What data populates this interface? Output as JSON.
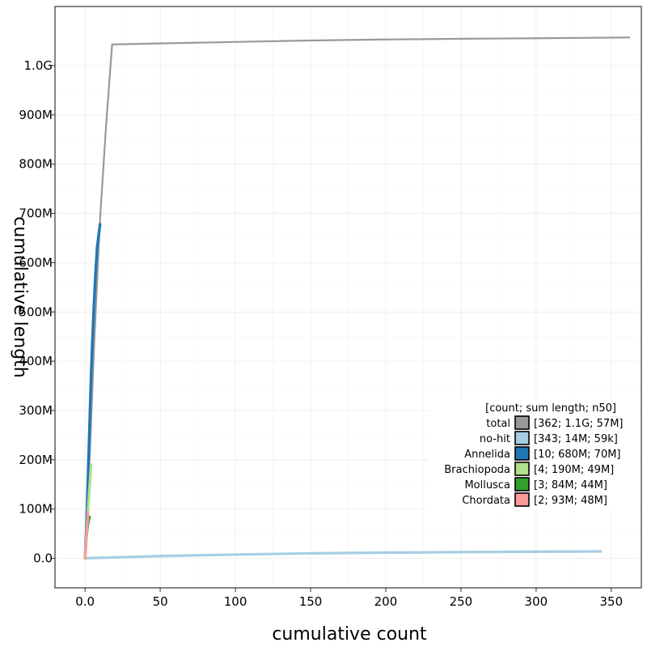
{
  "chart_data": {
    "type": "line",
    "xlabel": "cumulative count",
    "ylabel": "cumulative length",
    "xlim": [
      -20,
      370
    ],
    "ylim": [
      -60000000,
      1120000000
    ],
    "x_ticks": [
      0,
      50,
      100,
      150,
      200,
      250,
      300,
      350
    ],
    "x_tick_labels": [
      "0.0",
      "50",
      "100",
      "150",
      "200",
      "250",
      "300",
      "350"
    ],
    "y_ticks": [
      0,
      100000000,
      200000000,
      300000000,
      400000000,
      500000000,
      600000000,
      700000000,
      800000000,
      900000000,
      1000000000
    ],
    "y_tick_labels": [
      "0.0",
      "100M",
      "200M",
      "300M",
      "400M",
      "500M",
      "600M",
      "700M",
      "800M",
      "900M",
      "1.0G"
    ],
    "grid": true,
    "legend_position": "bottom-right",
    "legend_title": "[count; sum length; n50]",
    "series": [
      {
        "name": "total",
        "stats": "[362; 1.1G; 57M]",
        "color": "#999999",
        "values": [
          [
            0,
            0
          ],
          [
            2,
            120000000
          ],
          [
            6,
            430000000
          ],
          [
            10,
            690000000
          ],
          [
            14,
            880000000
          ],
          [
            18,
            1043000000
          ],
          [
            50,
            1045000000
          ],
          [
            100,
            1048000000
          ],
          [
            150,
            1051000000
          ],
          [
            200,
            1053000000
          ],
          [
            250,
            1054500000
          ],
          [
            300,
            1055500000
          ],
          [
            362,
            1057000000
          ]
        ]
      },
      {
        "name": "no-hit",
        "stats": "[343; 14M; 59k]",
        "color": "#a6cee3",
        "values": [
          [
            0,
            0
          ],
          [
            1,
            200000
          ],
          [
            50,
            4500000
          ],
          [
            100,
            7500000
          ],
          [
            150,
            10000000
          ],
          [
            200,
            11500000
          ],
          [
            250,
            12500000
          ],
          [
            300,
            13400000
          ],
          [
            343,
            14000000
          ]
        ]
      },
      {
        "name": "Annelida",
        "stats": "[10; 680M; 70M]",
        "color": "#1f78b4",
        "values": [
          [
            0,
            0
          ],
          [
            1,
            70000000
          ],
          [
            2,
            170000000
          ],
          [
            3,
            270000000
          ],
          [
            4,
            370000000
          ],
          [
            5,
            450000000
          ],
          [
            6,
            520000000
          ],
          [
            7,
            580000000
          ],
          [
            8,
            630000000
          ],
          [
            9,
            655000000
          ],
          [
            10,
            678000000
          ]
        ]
      },
      {
        "name": "Brachiopoda",
        "stats": "[4; 190M; 49M]",
        "color": "#b2df8a",
        "values": [
          [
            0,
            0
          ],
          [
            1,
            50000000
          ],
          [
            2,
            100000000
          ],
          [
            3,
            145000000
          ],
          [
            4,
            190000000
          ]
        ]
      },
      {
        "name": "Mollusca",
        "stats": "[3; 84M; 44M]",
        "color": "#33a02c",
        "values": [
          [
            0,
            0
          ],
          [
            1,
            44000000
          ],
          [
            2,
            70000000
          ],
          [
            3,
            84000000
          ]
        ]
      },
      {
        "name": "Chordata",
        "stats": "[2; 93M; 48M]",
        "color": "#fb9a99",
        "values": [
          [
            0,
            0
          ],
          [
            1,
            48000000
          ],
          [
            2,
            93000000
          ]
        ]
      }
    ],
    "draw_order": [
      "total",
      "no-hit",
      "Annelida",
      "Mollusca",
      "Brachiopoda",
      "Chordata"
    ]
  }
}
